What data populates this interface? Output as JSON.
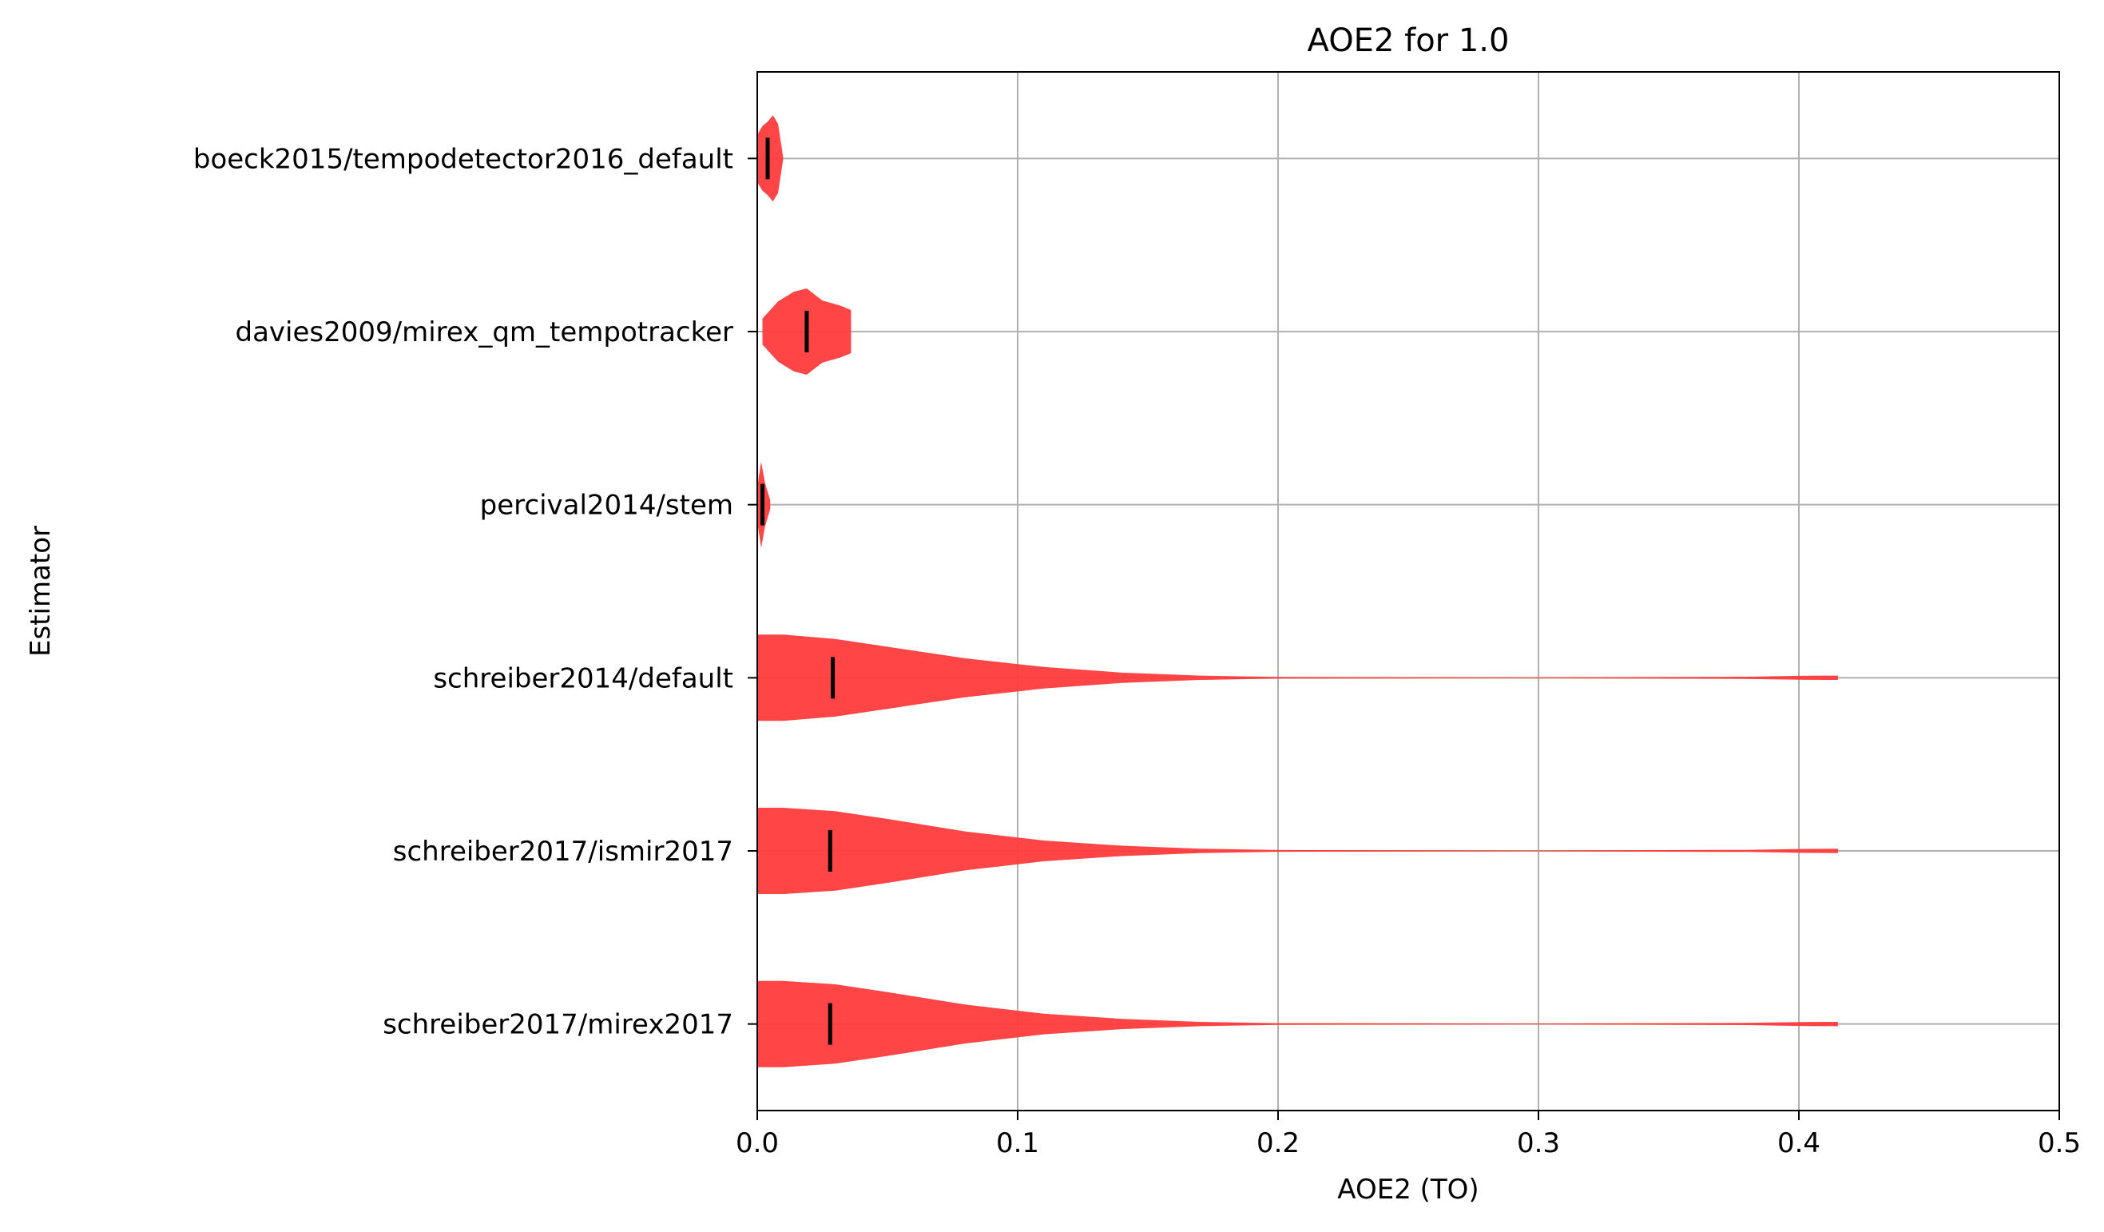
{
  "chart_data": {
    "type": "violin",
    "orientation": "horizontal",
    "title": "AOE2 for 1.0",
    "xlabel": "AOE2 (TO)",
    "ylabel": "Estimator",
    "xlim": [
      0.0,
      0.5
    ],
    "xticks": [
      0.0,
      0.1,
      0.2,
      0.3,
      0.4,
      0.5
    ],
    "xtick_labels": [
      "0.0",
      "0.1",
      "0.2",
      "0.3",
      "0.4",
      "0.5"
    ],
    "grid": true,
    "fill_color": "#ff3b3b",
    "median_color": "#000000",
    "estimators": [
      {
        "name": "boeck2015/tempodetector2016_default",
        "median": 0.004,
        "min": 0.0,
        "max": 0.01,
        "profile": [
          [
            0.0,
            0.55
          ],
          [
            0.002,
            0.75
          ],
          [
            0.004,
            0.85
          ],
          [
            0.006,
            1.0
          ],
          [
            0.008,
            0.8
          ],
          [
            0.01,
            0.0
          ]
        ]
      },
      {
        "name": "davies2009/mirex_qm_tempotracker",
        "median": 0.019,
        "min": 0.002,
        "max": 0.036,
        "profile": [
          [
            0.002,
            0.3
          ],
          [
            0.008,
            0.7
          ],
          [
            0.014,
            0.92
          ],
          [
            0.019,
            1.0
          ],
          [
            0.025,
            0.72
          ],
          [
            0.032,
            0.6
          ],
          [
            0.036,
            0.5
          ]
        ]
      },
      {
        "name": "percival2014/stem",
        "median": 0.002,
        "min": 0.0,
        "max": 0.005,
        "profile": [
          [
            0.0,
            0.4
          ],
          [
            0.0015,
            1.0
          ],
          [
            0.003,
            0.5
          ],
          [
            0.005,
            0.1
          ]
        ]
      },
      {
        "name": "schreiber2014/default",
        "median": 0.029,
        "min": 0.0,
        "max": 0.415,
        "profile": [
          [
            0.0,
            1.0
          ],
          [
            0.01,
            1.0
          ],
          [
            0.03,
            0.9
          ],
          [
            0.05,
            0.72
          ],
          [
            0.08,
            0.45
          ],
          [
            0.11,
            0.25
          ],
          [
            0.14,
            0.12
          ],
          [
            0.17,
            0.05
          ],
          [
            0.2,
            0.02
          ],
          [
            0.3,
            0.01
          ],
          [
            0.38,
            0.025
          ],
          [
            0.4,
            0.045
          ],
          [
            0.415,
            0.05
          ]
        ]
      },
      {
        "name": "schreiber2017/ismir2017",
        "median": 0.028,
        "min": 0.0,
        "max": 0.415,
        "profile": [
          [
            0.0,
            1.0
          ],
          [
            0.01,
            1.0
          ],
          [
            0.03,
            0.92
          ],
          [
            0.05,
            0.74
          ],
          [
            0.08,
            0.45
          ],
          [
            0.11,
            0.24
          ],
          [
            0.14,
            0.12
          ],
          [
            0.17,
            0.05
          ],
          [
            0.2,
            0.02
          ],
          [
            0.3,
            0.01
          ],
          [
            0.38,
            0.025
          ],
          [
            0.4,
            0.045
          ],
          [
            0.415,
            0.05
          ]
        ]
      },
      {
        "name": "schreiber2017/mirex2017",
        "median": 0.028,
        "min": 0.0,
        "max": 0.415,
        "profile": [
          [
            0.0,
            1.0
          ],
          [
            0.01,
            1.0
          ],
          [
            0.03,
            0.92
          ],
          [
            0.05,
            0.74
          ],
          [
            0.08,
            0.45
          ],
          [
            0.11,
            0.24
          ],
          [
            0.14,
            0.12
          ],
          [
            0.17,
            0.05
          ],
          [
            0.2,
            0.02
          ],
          [
            0.3,
            0.01
          ],
          [
            0.38,
            0.025
          ],
          [
            0.4,
            0.045
          ],
          [
            0.415,
            0.05
          ]
        ]
      }
    ]
  }
}
